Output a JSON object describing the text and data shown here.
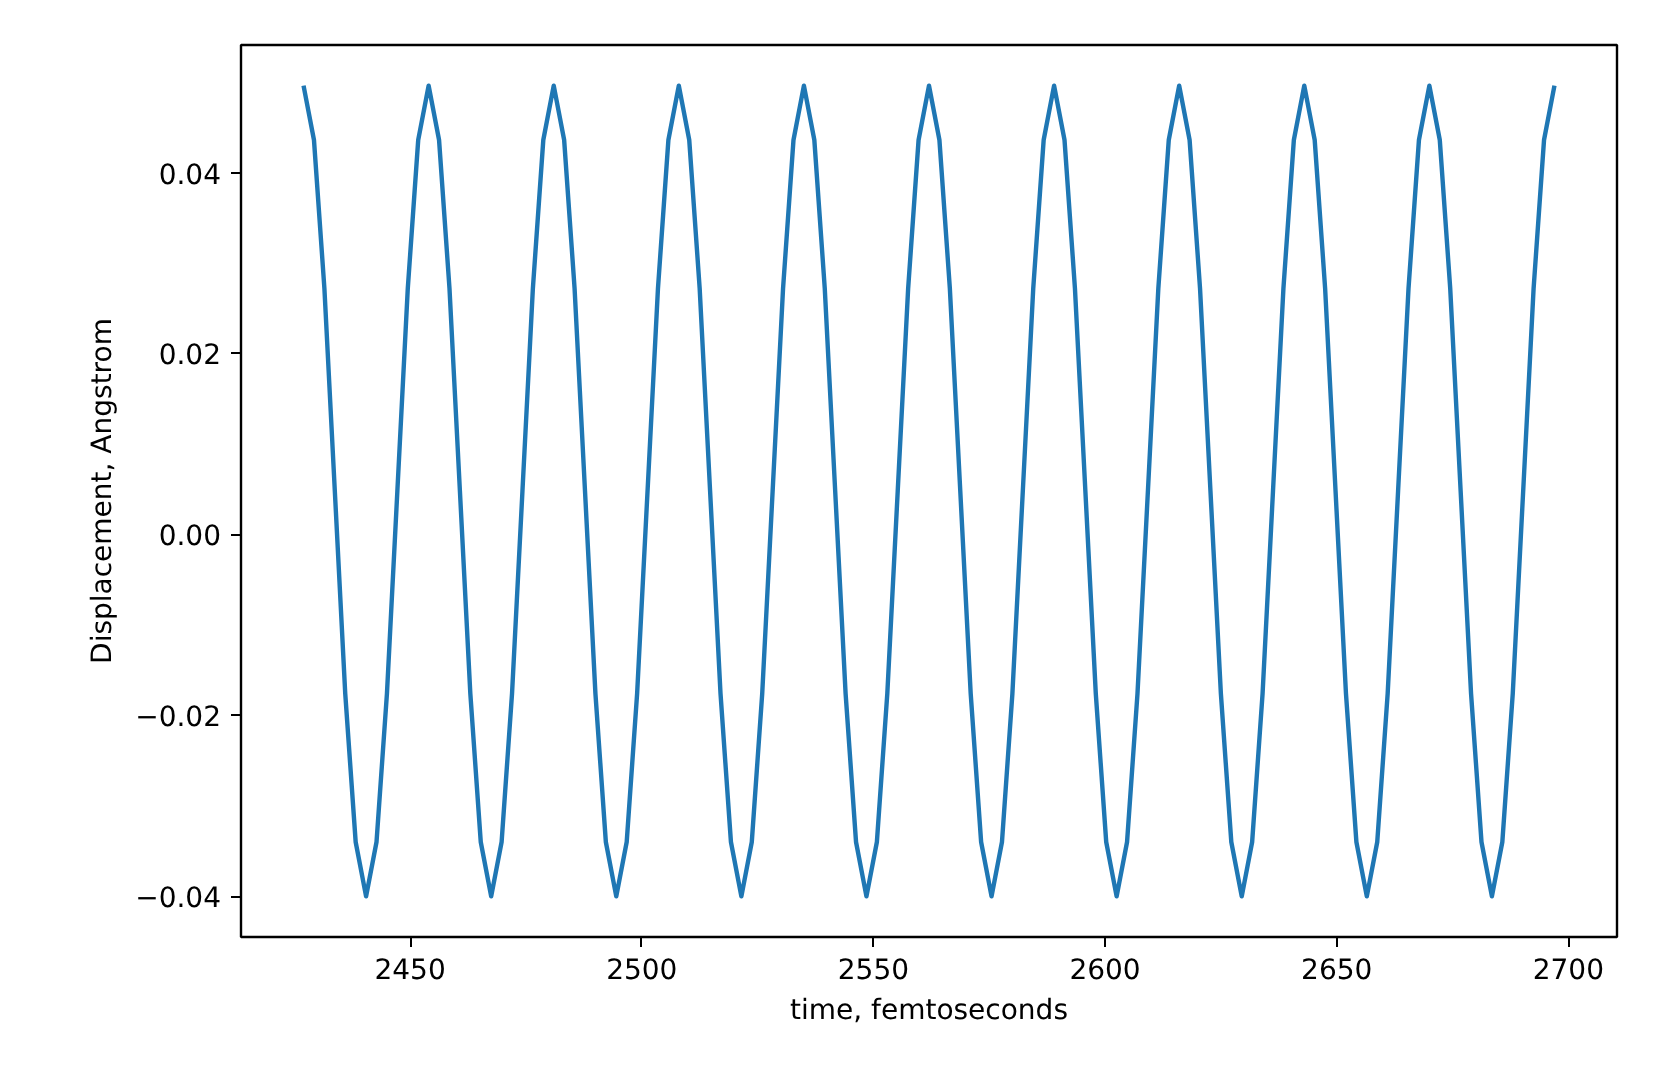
{
  "chart_data": {
    "type": "line",
    "xlabel": "time, femtoseconds",
    "ylabel": "Displacement, Angstrom",
    "xlim": [
      2413.5,
      2710.5
    ],
    "ylim": [
      -0.0445,
      0.0541
    ],
    "xticks": [
      2450,
      2500,
      2550,
      2600,
      2650,
      2700
    ],
    "yticks": [
      {
        "value": -0.04,
        "label": "−0.04"
      },
      {
        "value": -0.02,
        "label": "−0.02"
      },
      {
        "value": 0,
        "label": "0.00"
      },
      {
        "value": 0.02,
        "label": "0.02"
      },
      {
        "value": 0.04,
        "label": "0.04"
      }
    ],
    "grid": false,
    "series": [
      {
        "color": "#1f77b4",
        "x": [
          2427,
          2429.25,
          2431.5,
          2433.75,
          2436,
          2438.25,
          2440.5,
          2442.75,
          2445,
          2447.25,
          2449.5,
          2451.75,
          2454,
          2456.25,
          2458.5,
          2460.75,
          2463,
          2465.25,
          2467.5,
          2469.75,
          2472,
          2474.25,
          2476.5,
          2478.75,
          2481,
          2483.25,
          2485.5,
          2487.75,
          2490,
          2492.25,
          2494.5,
          2496.75,
          2499,
          2501.25,
          2503.5,
          2505.75,
          2508,
          2510.25,
          2512.5,
          2514.75,
          2517,
          2519.25,
          2521.5,
          2523.75,
          2526,
          2528.25,
          2530.5,
          2532.75,
          2535,
          2537.25,
          2539.5,
          2541.75,
          2544,
          2546.25,
          2548.5,
          2550.75,
          2553,
          2555.25,
          2557.5,
          2559.75,
          2562,
          2564.25,
          2566.5,
          2568.75,
          2571,
          2573.25,
          2575.5,
          2577.75,
          2580,
          2582.25,
          2584.5,
          2586.75,
          2589,
          2591.25,
          2593.5,
          2595.75,
          2598,
          2600.25,
          2602.5,
          2604.75,
          2607,
          2609.25,
          2611.5,
          2613.75,
          2616,
          2618.25,
          2620.5,
          2622.75,
          2625,
          2627.25,
          2629.5,
          2631.75,
          2634,
          2636.25,
          2638.5,
          2640.75,
          2643,
          2645.25,
          2647.5,
          2649.75,
          2652,
          2654.25,
          2656.5,
          2658.75,
          2661,
          2663.25,
          2665.5,
          2667.75,
          2670,
          2672.25,
          2674.5,
          2676.75,
          2679,
          2681.25,
          2683.5,
          2685.75,
          2688,
          2690.25,
          2692.5,
          2694.75,
          2697
        ],
        "values": [
          0.0496,
          0.0436,
          0.0272,
          0.0048,
          -0.0176,
          -0.034,
          -0.04,
          -0.034,
          -0.0176,
          0.0048,
          0.0272,
          0.0436,
          0.0496,
          0.0436,
          0.0272,
          0.0048,
          -0.0176,
          -0.034,
          -0.04,
          -0.034,
          -0.0176,
          0.0048,
          0.0272,
          0.0436,
          0.0496,
          0.0436,
          0.0272,
          0.0048,
          -0.0176,
          -0.034,
          -0.04,
          -0.034,
          -0.0176,
          0.0048,
          0.0272,
          0.0436,
          0.0496,
          0.0436,
          0.0272,
          0.0048,
          -0.0176,
          -0.034,
          -0.04,
          -0.034,
          -0.0176,
          0.0048,
          0.0272,
          0.0436,
          0.0496,
          0.0436,
          0.0272,
          0.0048,
          -0.0176,
          -0.034,
          -0.04,
          -0.034,
          -0.0176,
          0.0048,
          0.0272,
          0.0436,
          0.0496,
          0.0436,
          0.0272,
          0.0048,
          -0.0176,
          -0.034,
          -0.04,
          -0.034,
          -0.0176,
          0.0048,
          0.0272,
          0.0436,
          0.0496,
          0.0436,
          0.0272,
          0.0048,
          -0.0176,
          -0.034,
          -0.04,
          -0.034,
          -0.0176,
          0.0048,
          0.0272,
          0.0436,
          0.0496,
          0.0436,
          0.0272,
          0.0048,
          -0.0176,
          -0.034,
          -0.04,
          -0.034,
          -0.0176,
          0.0048,
          0.0272,
          0.0436,
          0.0496,
          0.0436,
          0.0272,
          0.0048,
          -0.0176,
          -0.034,
          -0.04,
          -0.034,
          -0.0176,
          0.0048,
          0.0272,
          0.0436,
          0.0496,
          0.0436,
          0.0272,
          0.0048,
          -0.0176,
          -0.034,
          -0.04,
          -0.034,
          -0.0176,
          0.0048,
          0.0272,
          0.0436,
          0.0496
        ]
      }
    ]
  }
}
